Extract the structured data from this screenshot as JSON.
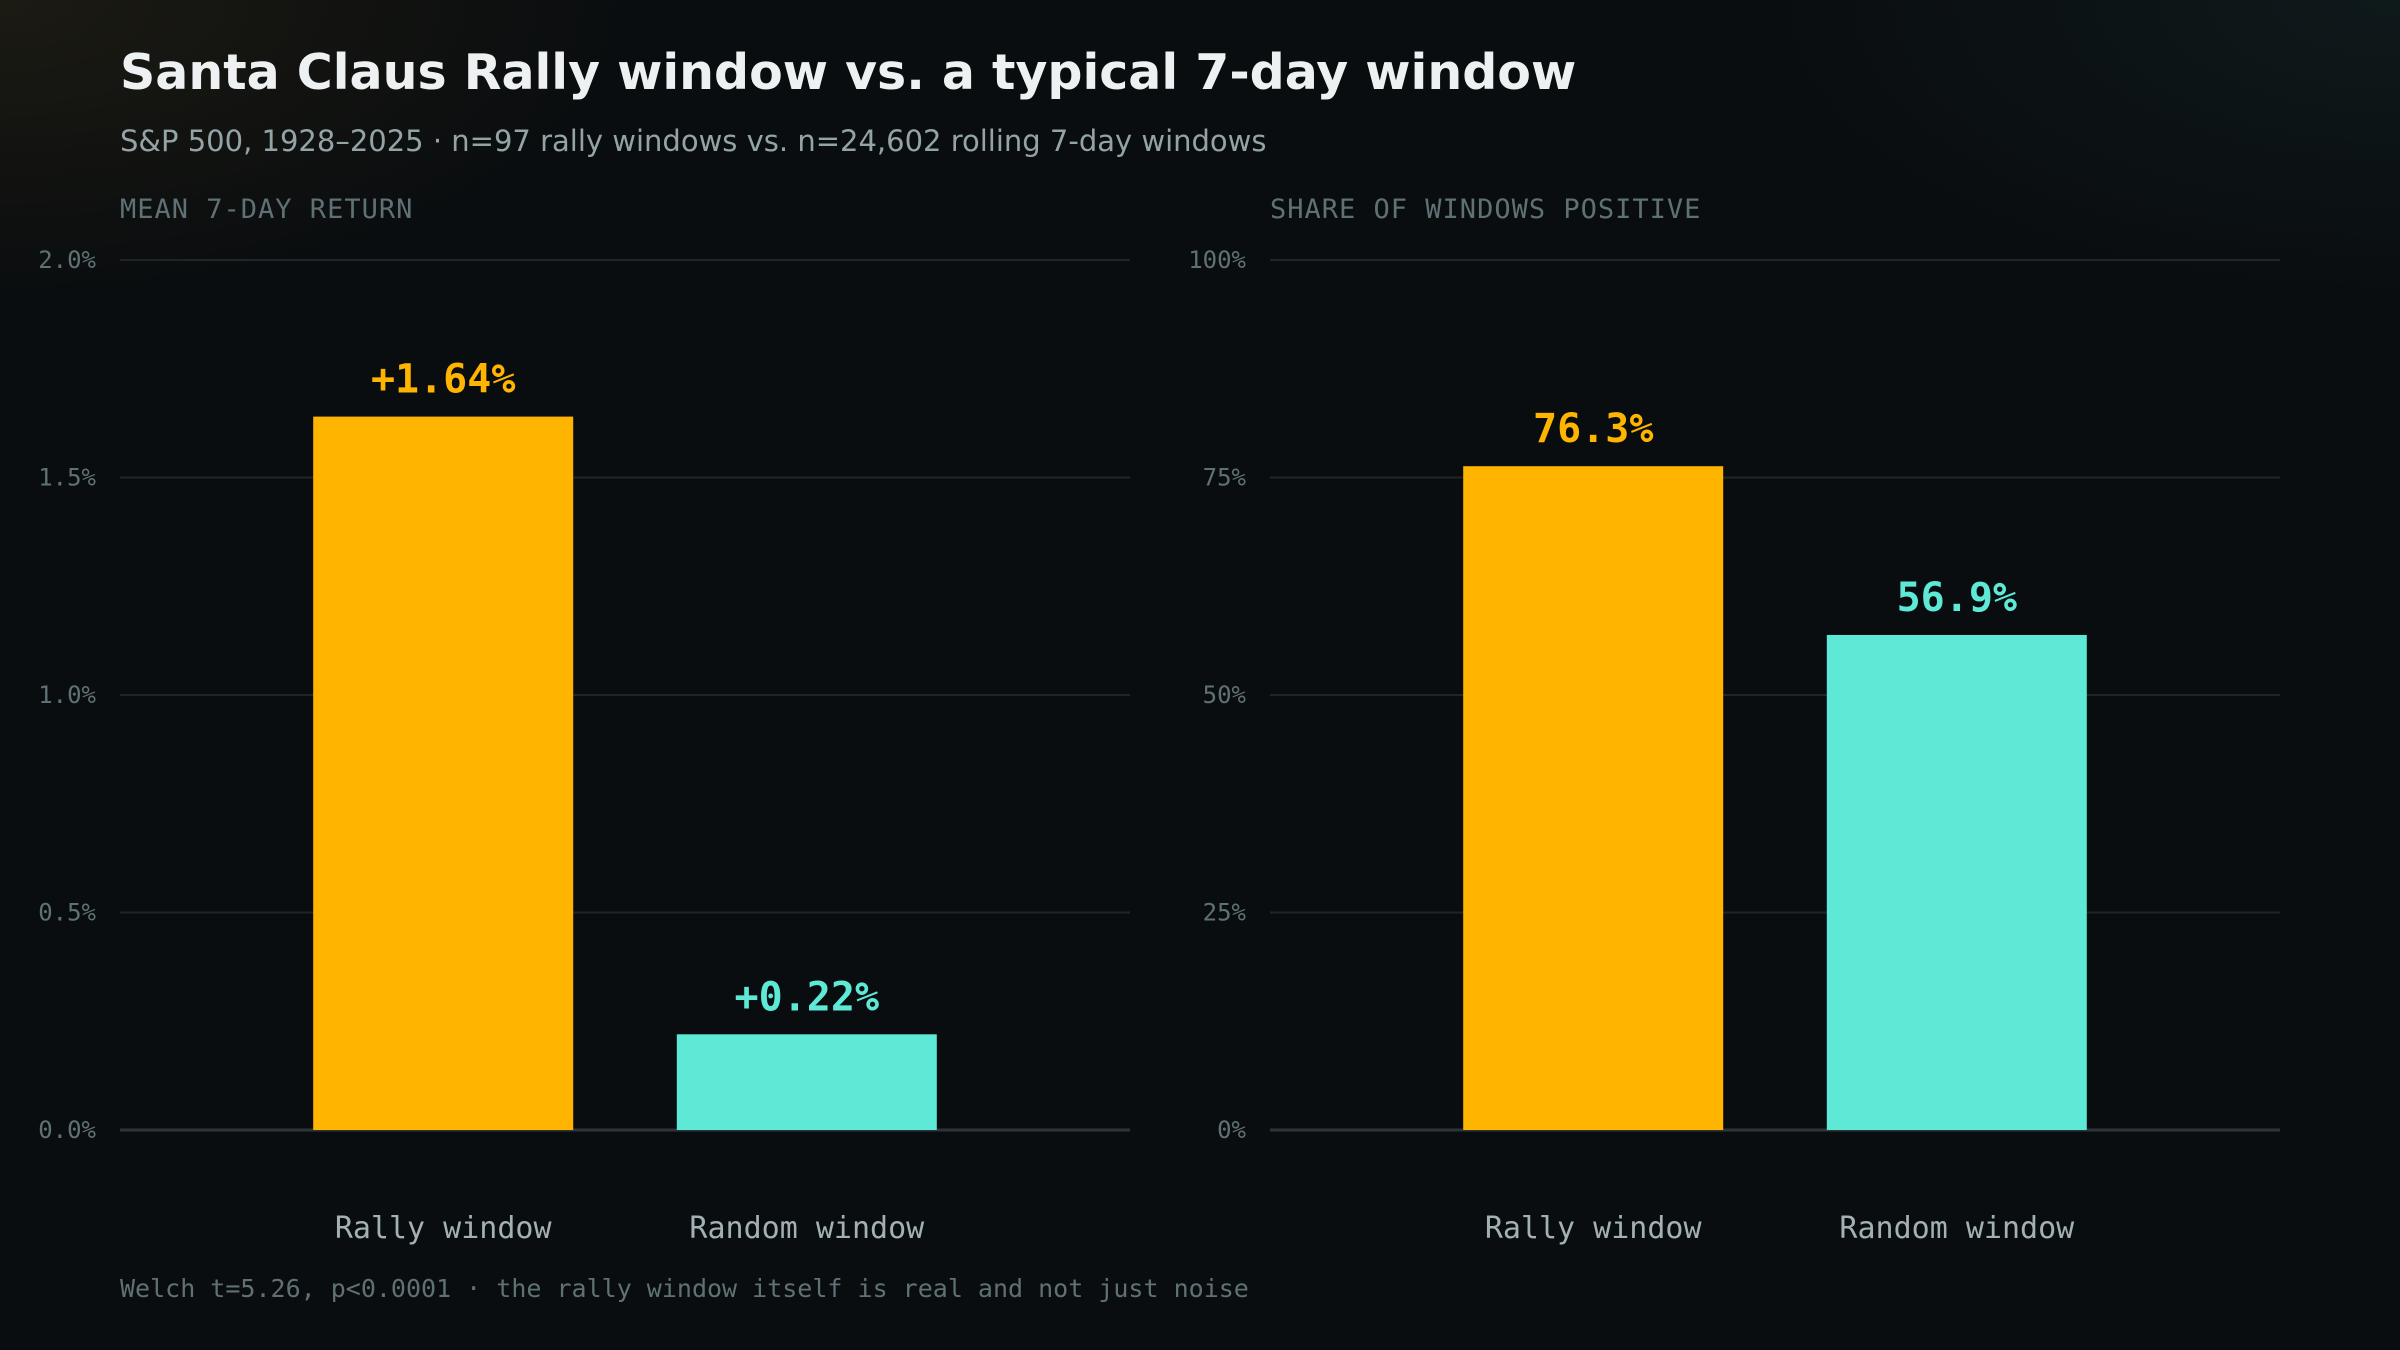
{
  "title": "Santa Claus Rally window vs. a typical 7-day window",
  "subtitle": "S&P 500, 1928–2025 · n=97 rally windows vs. n=24,602 rolling 7-day windows",
  "footnote": "Welch t=5.26, p<0.0001 · the rally window itself is real and not just noise",
  "colors": {
    "rally": "#ffb400",
    "random": "#5ee8d6",
    "grid": "#1f2628",
    "axis": "#2c3638"
  },
  "chart_data": [
    {
      "type": "bar",
      "title": "MEAN 7-DAY RETURN",
      "categories": [
        "Rally window",
        "Random window"
      ],
      "values": [
        1.64,
        0.22
      ],
      "value_labels": [
        "+1.64%",
        "+0.22%"
      ],
      "ylim": [
        0,
        2.0
      ],
      "yticks": [
        0,
        0.5,
        1.0,
        1.5,
        2.0
      ],
      "ytick_labels": [
        "0.0%",
        "0.5%",
        "1.0%",
        "1.5%",
        "2.0%"
      ],
      "grid": true
    },
    {
      "type": "bar",
      "title": "SHARE OF WINDOWS POSITIVE",
      "categories": [
        "Rally window",
        "Random window"
      ],
      "values": [
        76.3,
        56.9
      ],
      "value_labels": [
        "76.3%",
        "56.9%"
      ],
      "ylim": [
        0,
        100
      ],
      "yticks": [
        0,
        25,
        50,
        75,
        100
      ],
      "ytick_labels": [
        "0%",
        "25%",
        "50%",
        "75%",
        "100%"
      ],
      "grid": true
    }
  ]
}
